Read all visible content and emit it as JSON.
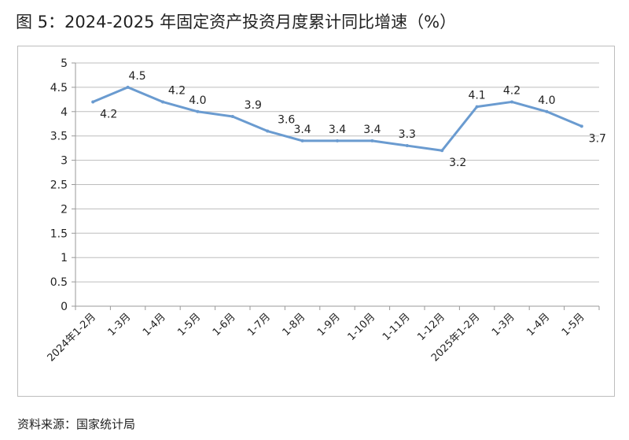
{
  "title": "图 5：2024-2025 年固定资产投资月度累计同比增速（%）",
  "source": "资料来源：国家统计局",
  "chart_data": {
    "type": "line",
    "title": "图 5：2024-2025 年固定资产投资月度累计同比增速（%）",
    "categories": [
      "2024年1-2月",
      "1-3月",
      "1-4月",
      "1-5月",
      "1-6月",
      "1-7月",
      "1-8月",
      "1-9月",
      "1-10月",
      "1-11月",
      "1-12月",
      "2025年1-2月",
      "1-3月",
      "1-4月",
      "1-5月"
    ],
    "series": [
      {
        "values": [
          4.2,
          4.5,
          4.2,
          4.0,
          3.9,
          3.6,
          3.4,
          3.4,
          3.4,
          3.3,
          3.2,
          4.1,
          4.2,
          4.0,
          3.7
        ],
        "color": "#6a9bd0"
      }
    ],
    "data_labels": [
      "4.2",
      "4.5",
      "4.2",
      "4.0",
      "3.9",
      "3.6",
      "3.4",
      "3.4",
      "3.4",
      "3.3",
      "3.2",
      "4.1",
      "4.2",
      "4.0",
      "3.7"
    ],
    "yticks": [
      "0",
      "0.5",
      "1",
      "1.5",
      "2",
      "2.5",
      "3",
      "3.5",
      "4",
      "4.5",
      "5"
    ],
    "ylim": [
      0,
      5
    ],
    "grid": true,
    "legend": "none"
  }
}
